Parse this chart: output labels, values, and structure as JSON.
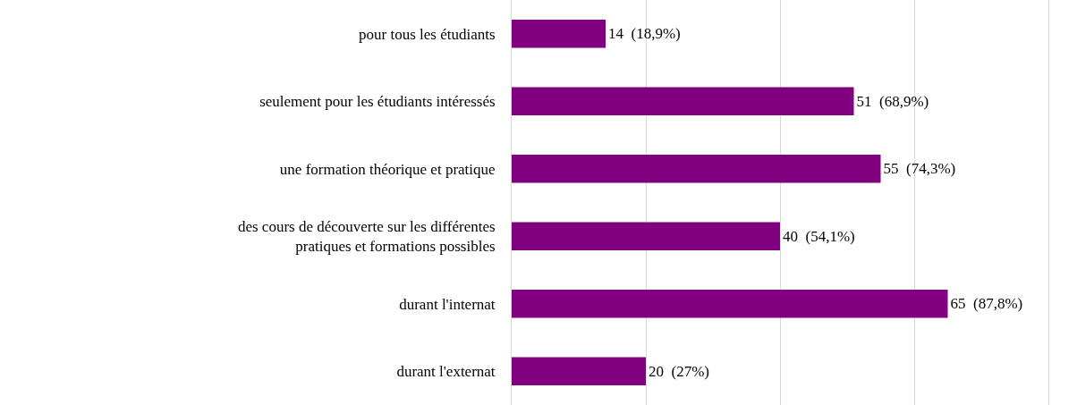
{
  "chart_data": {
    "type": "bar",
    "orientation": "horizontal",
    "categories": [
      "pour tous les étudiants",
      "seulement pour les étudiants intéressés",
      "une formation théorique et pratique",
      "des cours de découverte sur les différentes pratiques et formations possibles",
      "durant l'internat",
      "durant l'externat"
    ],
    "values": [
      14,
      51,
      55,
      40,
      65,
      20
    ],
    "value_labels": [
      "14  (18,9%)",
      "51  (68,9%)",
      "55  (74,3%)",
      "40  (54,1%)",
      "65  (87,8%)",
      "20  (27%)"
    ],
    "color": "#800080",
    "xlim": [
      0,
      80
    ],
    "xticks": [
      {
        "value": 20,
        "label": null
      },
      {
        "value": 40,
        "label": null
      },
      {
        "value": 60,
        "label": null
      }
    ],
    "grid": "x",
    "tick_labels": "y"
  }
}
